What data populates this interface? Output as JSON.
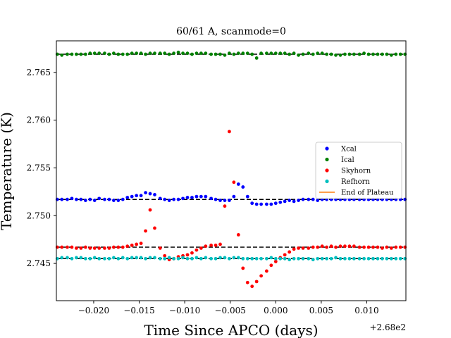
{
  "chart_data": {
    "type": "scatter",
    "title": "60/61 A, scanmode=0",
    "xlabel": "Time Since APCO (days)",
    "ylabel": "Temperature (K)",
    "x_offset_label": "+2.68e2",
    "xlim": [
      -0.0241,
      0.0143
    ],
    "ylim": [
      2.7411,
      2.7683
    ],
    "xticks": [
      -0.02,
      -0.015,
      -0.01,
      -0.005,
      0.0,
      0.005,
      0.01
    ],
    "xtick_labels": [
      "−0.020",
      "−0.015",
      "−0.010",
      "−0.005",
      "0.000",
      "0.005",
      "0.010"
    ],
    "yticks": [
      2.745,
      2.75,
      2.755,
      2.76,
      2.765
    ],
    "ytick_labels": [
      "2.745",
      "2.750",
      "2.755",
      "2.760",
      "2.765"
    ],
    "legend_position": "center-right",
    "series": [
      {
        "name": "Xcal",
        "color": "#0000ff",
        "x": [
          -0.024,
          -0.0235,
          -0.0229,
          -0.0224,
          -0.0219,
          -0.0214,
          -0.0209,
          -0.0204,
          -0.0199,
          -0.0194,
          -0.0188,
          -0.0183,
          -0.0178,
          -0.0173,
          -0.0168,
          -0.0163,
          -0.0158,
          -0.0153,
          -0.0148,
          -0.0143,
          -0.0138,
          -0.0133,
          -0.0127,
          -0.0122,
          -0.0117,
          -0.0112,
          -0.0107,
          -0.0102,
          -0.0097,
          -0.0092,
          -0.0087,
          -0.0082,
          -0.0077,
          -0.0071,
          -0.0066,
          -0.0061,
          -0.0056,
          -0.0051,
          -0.0046,
          -0.0041,
          -0.0036,
          -0.0031,
          -0.0026,
          -0.0021,
          -0.0016,
          -0.001,
          -0.0005,
          0.0,
          0.0005,
          0.001,
          0.0015,
          0.002,
          0.0025,
          0.003,
          0.0036,
          0.0041,
          0.0046,
          0.0051,
          0.0056,
          0.0061,
          0.0066,
          0.0071,
          0.0076,
          0.0081,
          0.0086,
          0.0092,
          0.0097,
          0.0102,
          0.0107,
          0.0112,
          0.0117,
          0.0122,
          0.0127,
          0.0132,
          0.0137,
          0.0142
        ],
        "y": [
          2.7517,
          2.7517,
          2.7517,
          2.7518,
          2.7517,
          2.7517,
          2.7516,
          2.7517,
          2.7516,
          2.7518,
          2.7517,
          2.7517,
          2.7516,
          2.7516,
          2.7517,
          2.7519,
          2.752,
          2.7521,
          2.7521,
          2.7524,
          2.7523,
          2.7522,
          2.7518,
          2.7517,
          2.7516,
          2.7517,
          2.7517,
          2.7518,
          2.7519,
          2.7519,
          2.752,
          2.752,
          2.752,
          2.7518,
          2.7517,
          2.7516,
          2.7516,
          2.7516,
          2.752,
          2.7533,
          2.753,
          2.752,
          2.7513,
          2.7512,
          2.7512,
          2.7512,
          2.7512,
          2.7513,
          2.7514,
          2.7515,
          2.7516,
          2.7515,
          2.7516,
          2.7517,
          2.7517,
          2.7517,
          2.7516,
          2.7517,
          2.7517,
          2.7517,
          2.7517,
          2.7517,
          2.7517,
          2.7517,
          2.7517,
          2.7517,
          2.7517,
          2.7517,
          2.7517,
          2.7517,
          2.7517,
          2.7517,
          2.7517,
          2.7517,
          2.7517,
          2.7517
        ]
      },
      {
        "name": "Ical",
        "color": "#008000",
        "x": [
          -0.024,
          -0.0235,
          -0.0229,
          -0.0224,
          -0.0219,
          -0.0214,
          -0.0209,
          -0.0204,
          -0.0199,
          -0.0194,
          -0.0188,
          -0.0183,
          -0.0178,
          -0.0173,
          -0.0168,
          -0.0163,
          -0.0158,
          -0.0153,
          -0.0148,
          -0.0143,
          -0.0138,
          -0.0133,
          -0.0127,
          -0.0122,
          -0.0117,
          -0.0112,
          -0.0107,
          -0.0102,
          -0.0097,
          -0.0092,
          -0.0087,
          -0.0082,
          -0.0077,
          -0.0071,
          -0.0066,
          -0.0061,
          -0.0056,
          -0.0051,
          -0.0046,
          -0.0041,
          -0.0036,
          -0.0031,
          -0.0026,
          -0.0021,
          -0.0016,
          -0.001,
          -0.0005,
          0.0,
          0.0005,
          0.001,
          0.0015,
          0.002,
          0.0025,
          0.003,
          0.0036,
          0.0041,
          0.0046,
          0.0051,
          0.0056,
          0.0061,
          0.0066,
          0.0071,
          0.0076,
          0.0081,
          0.0086,
          0.0092,
          0.0097,
          0.0102,
          0.0107,
          0.0112,
          0.0117,
          0.0122,
          0.0127,
          0.0132,
          0.0137,
          0.0142
        ],
        "y": [
          2.7669,
          2.7668,
          2.7669,
          2.7669,
          2.7669,
          2.7669,
          2.7669,
          2.767,
          2.767,
          2.767,
          2.767,
          2.7669,
          2.767,
          2.7669,
          2.7669,
          2.7669,
          2.767,
          2.767,
          2.767,
          2.7669,
          2.767,
          2.767,
          2.767,
          2.767,
          2.7669,
          2.767,
          2.7671,
          2.767,
          2.767,
          2.7669,
          2.767,
          2.767,
          2.767,
          2.7669,
          2.7669,
          2.7669,
          2.7668,
          2.767,
          2.7669,
          2.767,
          2.767,
          2.767,
          2.7669,
          2.7665,
          2.767,
          2.767,
          2.767,
          2.767,
          2.767,
          2.767,
          2.7669,
          2.767,
          2.7668,
          2.7669,
          2.767,
          2.7669,
          2.767,
          2.767,
          2.7669,
          2.7669,
          2.7668,
          2.7668,
          2.7669,
          2.7669,
          2.7669,
          2.7669,
          2.767,
          2.7669,
          2.7669,
          2.7669,
          2.7669,
          2.7669,
          2.7668,
          2.7669,
          2.7669,
          2.7669
        ]
      },
      {
        "name": "Skyhorn",
        "color": "#ff0000",
        "x": [
          -0.024,
          -0.0235,
          -0.0229,
          -0.0224,
          -0.0219,
          -0.0214,
          -0.0209,
          -0.0204,
          -0.0199,
          -0.0194,
          -0.0188,
          -0.0183,
          -0.0178,
          -0.0173,
          -0.0168,
          -0.0163,
          -0.0158,
          -0.0153,
          -0.0148,
          -0.0143,
          -0.0138,
          -0.0133,
          -0.0127,
          -0.0122,
          -0.0117,
          -0.0112,
          -0.0107,
          -0.0102,
          -0.0097,
          -0.0092,
          -0.0087,
          -0.0082,
          -0.0077,
          -0.0071,
          -0.0066,
          -0.0061,
          -0.0056,
          -0.0051,
          -0.0046,
          -0.0041,
          -0.0036,
          -0.0031,
          -0.0026,
          -0.0021,
          -0.0016,
          -0.001,
          -0.0005,
          0.0,
          0.0005,
          0.001,
          0.0015,
          0.002,
          0.0025,
          0.003,
          0.0036,
          0.0041,
          0.0046,
          0.0051,
          0.0056,
          0.0061,
          0.0066,
          0.0071,
          0.0076,
          0.0081,
          0.0086,
          0.0092,
          0.0097,
          0.0102,
          0.0107,
          0.0112,
          0.0117,
          0.0122,
          0.0127,
          0.0132,
          0.0137,
          0.0142
        ],
        "y": [
          2.7467,
          2.7467,
          2.7467,
          2.7467,
          2.7466,
          2.7466,
          2.7467,
          2.7466,
          2.7466,
          2.7466,
          2.7466,
          2.7466,
          2.7467,
          2.7467,
          2.7467,
          2.7468,
          2.7469,
          2.747,
          2.7471,
          2.7484,
          2.7506,
          2.7487,
          2.7466,
          2.7458,
          2.7454,
          2.7455,
          2.7457,
          2.7458,
          2.7459,
          2.7461,
          2.7464,
          2.7466,
          2.7468,
          2.7469,
          2.7469,
          2.747,
          2.751,
          2.7588,
          2.7535,
          2.748,
          2.7445,
          2.743,
          2.7426,
          2.7431,
          2.7437,
          2.7442,
          2.7448,
          2.7452,
          2.7456,
          2.7459,
          2.7462,
          2.7465,
          2.7466,
          2.7466,
          2.7466,
          2.7467,
          2.7467,
          2.7468,
          2.7467,
          2.7468,
          2.7467,
          2.7468,
          2.7468,
          2.7468,
          2.7468,
          2.7467,
          2.7467,
          2.7467,
          2.7467,
          2.7467,
          2.7466,
          2.7467,
          2.7466,
          2.7467,
          2.7467,
          2.7467
        ]
      },
      {
        "name": "Refhorn",
        "color": "#00bfbf",
        "x": [
          -0.024,
          -0.0235,
          -0.0229,
          -0.0224,
          -0.0219,
          -0.0214,
          -0.0209,
          -0.0204,
          -0.0199,
          -0.0194,
          -0.0188,
          -0.0183,
          -0.0178,
          -0.0173,
          -0.0168,
          -0.0163,
          -0.0158,
          -0.0153,
          -0.0148,
          -0.0143,
          -0.0138,
          -0.0133,
          -0.0127,
          -0.0122,
          -0.0117,
          -0.0112,
          -0.0107,
          -0.0102,
          -0.0097,
          -0.0092,
          -0.0087,
          -0.0082,
          -0.0077,
          -0.0071,
          -0.0066,
          -0.0061,
          -0.0056,
          -0.0051,
          -0.0046,
          -0.0041,
          -0.0036,
          -0.0031,
          -0.0026,
          -0.0021,
          -0.0016,
          -0.001,
          -0.0005,
          0.0,
          0.0005,
          0.001,
          0.0015,
          0.002,
          0.0025,
          0.003,
          0.0036,
          0.0041,
          0.0046,
          0.0051,
          0.0056,
          0.0061,
          0.0066,
          0.0071,
          0.0076,
          0.0081,
          0.0086,
          0.0092,
          0.0097,
          0.0102,
          0.0107,
          0.0112,
          0.0117,
          0.0122,
          0.0127,
          0.0132,
          0.0137,
          0.0142
        ],
        "y": [
          2.7455,
          2.7456,
          2.7456,
          2.7455,
          2.7456,
          2.7456,
          2.7455,
          2.7455,
          2.7456,
          2.7455,
          2.7455,
          2.7455,
          2.7456,
          2.7455,
          2.7456,
          2.7455,
          2.7456,
          2.7456,
          2.7456,
          2.7455,
          2.7456,
          2.7456,
          2.7455,
          2.7455,
          2.7456,
          2.7455,
          2.7455,
          2.7456,
          2.7455,
          2.7455,
          2.7456,
          2.7455,
          2.7456,
          2.7455,
          2.7455,
          2.7456,
          2.7456,
          2.7455,
          2.7456,
          2.7456,
          2.7455,
          2.7455,
          2.7455,
          2.7455,
          2.7455,
          2.7455,
          2.7456,
          2.7455,
          2.7455,
          2.7455,
          2.7454,
          2.7455,
          2.7455,
          2.7455,
          2.7455,
          2.7454,
          2.7455,
          2.7455,
          2.7455,
          2.7455,
          2.7456,
          2.7455,
          2.7455,
          2.7455,
          2.7455,
          2.7455,
          2.7455,
          2.7455,
          2.7455,
          2.7455,
          2.7455,
          2.7455,
          2.7455,
          2.7455,
          2.7455,
          2.7455
        ]
      },
      {
        "name": "End of Plateau",
        "color": "#ff7f0e",
        "type": "line",
        "x": [],
        "y": []
      }
    ],
    "reference_lines": [
      {
        "y": 2.7669,
        "style": "dashed",
        "color": "#000000"
      },
      {
        "y": 2.7517,
        "style": "dashed",
        "color": "#000000"
      },
      {
        "y": 2.7467,
        "style": "dashed",
        "color": "#000000"
      },
      {
        "y": 2.7455,
        "style": "dashed",
        "color": "#000000"
      }
    ]
  }
}
